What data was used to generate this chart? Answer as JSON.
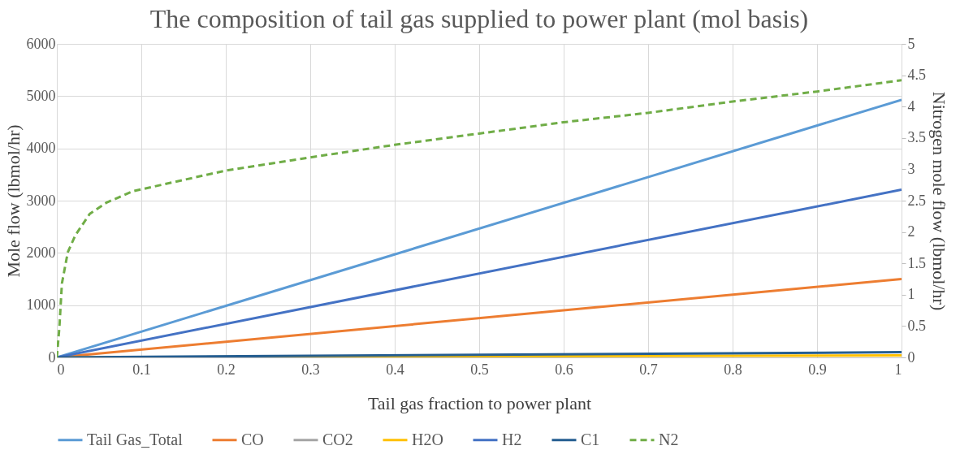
{
  "chart_data": {
    "type": "line",
    "title": "The composition of tail gas supplied to power plant (mol basis)",
    "xlabel": "Tail gas fraction to power plant",
    "ylabel": "Mole flow (lbmol/hr)",
    "y2label": "Nitrogen mole flow (lbmol/hr)",
    "xlim": [
      0,
      1
    ],
    "xticks": [
      0,
      0.1,
      0.2,
      0.3,
      0.4,
      0.5,
      0.6,
      0.7,
      0.8,
      0.9,
      1
    ],
    "line_style": "solid",
    "ylim": [
      0,
      6000
    ],
    "yticks": [
      0,
      1000,
      2000,
      3000,
      4000,
      5000,
      6000
    ],
    "y2lim": [
      0,
      5
    ],
    "y2ticks": [
      0,
      0.5,
      1,
      1.5,
      2,
      2.5,
      3,
      3.5,
      4,
      4.5,
      5
    ],
    "grid": true,
    "legend": "bottom",
    "marker": "none",
    "series": [
      {
        "name": "Tail Gas_Total",
        "color": "#5b9bd5",
        "x": [
          0,
          1
        ],
        "values": [
          0,
          4930
        ]
      },
      {
        "name": "CO",
        "color": "#ed7d31",
        "x": [
          0,
          1
        ],
        "values": [
          0,
          1500
        ]
      },
      {
        "name": "CO2",
        "color": "#a5a5a5",
        "values": [
          null
        ]
      },
      {
        "name": "H2O",
        "color": "#ffc000",
        "x": [
          0,
          1
        ],
        "values": [
          0,
          40
        ]
      },
      {
        "name": "H2",
        "color": "#4472c4",
        "x": [
          0,
          1
        ],
        "values": [
          0,
          3210
        ]
      },
      {
        "name": "C1",
        "color": "#255e91",
        "x": [
          0,
          1
        ],
        "values": [
          0,
          100
        ]
      },
      {
        "name": "N2",
        "color": "#70ad47",
        "axis": "y2",
        "line_style": "dashed",
        "x": [
          0,
          0.003,
          0.006,
          0.013,
          0.022,
          0.039,
          0.059,
          0.09,
          0.2,
          0.3,
          0.4,
          0.5,
          0.6,
          0.7,
          0.8,
          0.9,
          1
        ],
        "values": [
          0,
          0.48,
          1.18,
          1.68,
          1.95,
          2.29,
          2.47,
          2.65,
          2.98,
          3.19,
          3.39,
          3.57,
          3.75,
          3.9,
          4.08,
          4.24,
          4.42
        ]
      }
    ]
  }
}
